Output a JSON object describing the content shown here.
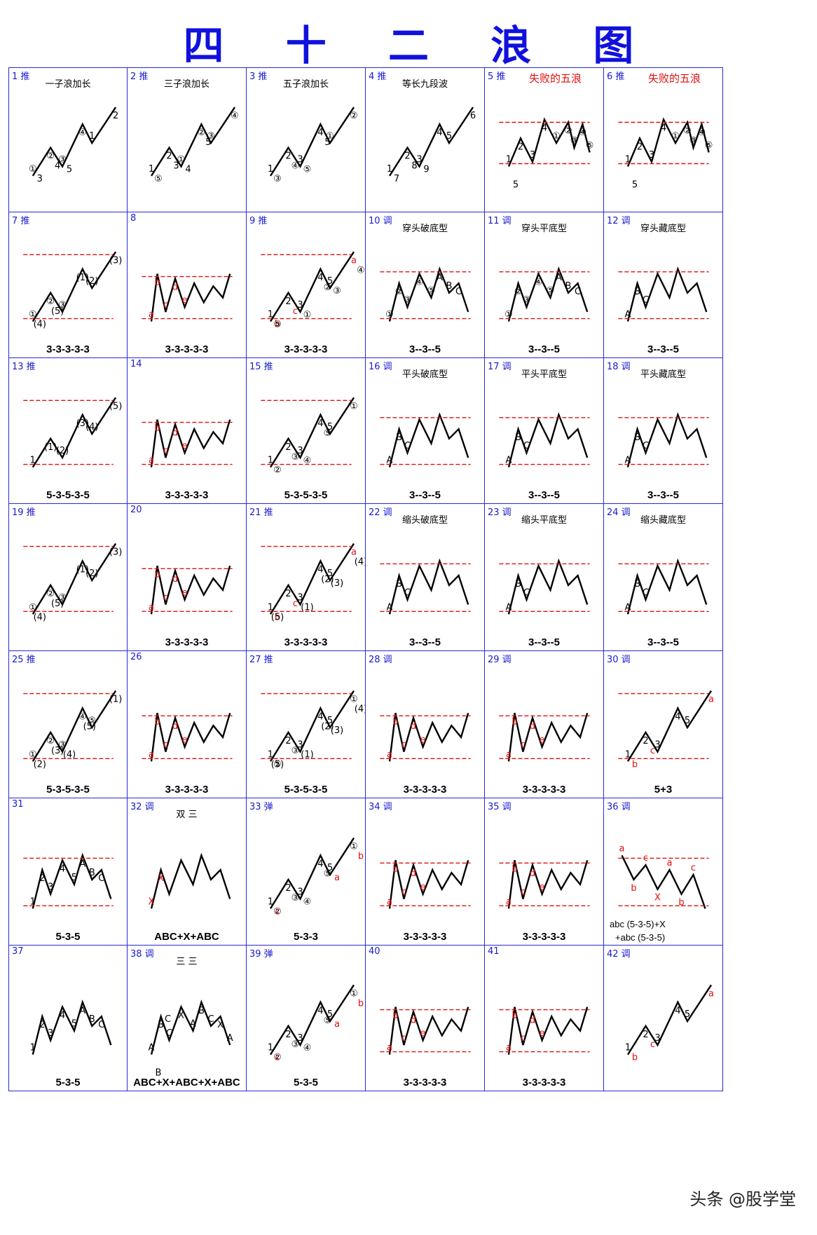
{
  "title": "四 十 二 浪 图",
  "watermark": "头条 @股学堂",
  "panels": [
    {
      "num": "1 推",
      "name": "一子浪加长",
      "formula": "",
      "red": false,
      "labels": [
        "①",
        "②",
        "③",
        "④",
        "1",
        "2",
        "3",
        "4",
        "5"
      ]
    },
    {
      "num": "2 推",
      "name": "三子浪加长",
      "formula": "",
      "red": false,
      "labels": [
        "1",
        "2",
        "①",
        "②",
        "③",
        "④",
        "⑤",
        "3",
        "4",
        "5"
      ]
    },
    {
      "num": "3 推",
      "name": "五子浪加长",
      "formula": "",
      "red": false,
      "labels": [
        "1",
        "2",
        "3",
        "4",
        "①",
        "②",
        "③",
        "④",
        "⑤",
        "5"
      ]
    },
    {
      "num": "4 推",
      "name": "等长九段波",
      "formula": "",
      "red": false,
      "labels": [
        "1",
        "2",
        "3",
        "4",
        "5",
        "6",
        "7",
        "8",
        "9"
      ]
    },
    {
      "num": "5 推",
      "name": "失败的五浪",
      "formula": "",
      "red": true,
      "labels": [
        "1",
        "2",
        "3",
        "4",
        "①",
        "②",
        "③",
        "④",
        "⑤",
        "5"
      ]
    },
    {
      "num": "6 推",
      "name": "失败的五浪",
      "formula": "",
      "red": true,
      "labels": [
        "1",
        "2",
        "3",
        "4",
        "①",
        "②",
        "③",
        "④",
        "⑤",
        "5"
      ]
    },
    {
      "num": "7 推",
      "name": "",
      "formula": "3-3-3-3-3",
      "red": false,
      "labels": [
        "①",
        "②",
        "③",
        "(1)",
        "(2)",
        "(3)",
        "(4)",
        "(5)"
      ]
    },
    {
      "num": "8",
      "name": "",
      "formula": "3-3-3-3-3",
      "red": false,
      "labels": [
        "a",
        "b",
        "c",
        "d",
        "e"
      ]
    },
    {
      "num": "9 推",
      "name": "",
      "formula": "3-3-3-3-3",
      "red": false,
      "labels": [
        "1",
        "2",
        "3",
        "4",
        "5",
        "a",
        "b",
        "c",
        "①",
        "②",
        "③",
        "④",
        "⑤"
      ]
    },
    {
      "num": "10 调",
      "name": "穿头破底型",
      "formula": "3--3--5",
      "red": false,
      "labels": [
        "①",
        "②",
        "③",
        "④",
        "⑤",
        "A",
        "B",
        "C"
      ]
    },
    {
      "num": "11 调",
      "name": "穿头平底型",
      "formula": "3--3--5",
      "red": false,
      "labels": [
        "①",
        "②",
        "③",
        "④",
        "⑤",
        "A",
        "B",
        "C"
      ]
    },
    {
      "num": "12 调",
      "name": "穿头藏底型",
      "formula": "3--3--5",
      "red": false,
      "labels": [
        "A",
        "B",
        "C"
      ]
    },
    {
      "num": "13 推",
      "name": "",
      "formula": "5-3-5-3-5",
      "red": false,
      "labels": [
        "1",
        "(1)",
        "(2)",
        "(3)",
        "(4)",
        "(5)"
      ]
    },
    {
      "num": "14",
      "name": "",
      "formula": "3-3-3-3-3",
      "red": false,
      "labels": [
        "a",
        "b",
        "c",
        "d",
        "e"
      ]
    },
    {
      "num": "15 推",
      "name": "",
      "formula": "5-3-5-3-5",
      "red": false,
      "labels": [
        "1",
        "2",
        "3",
        "4",
        "5",
        "①",
        "②",
        "③",
        "④",
        "⑤"
      ]
    },
    {
      "num": "16 调",
      "name": "平头破底型",
      "formula": "3--3--5",
      "red": false,
      "labels": [
        "A",
        "B",
        "C"
      ]
    },
    {
      "num": "17 调",
      "name": "平头平底型",
      "formula": "3--3--5",
      "red": false,
      "labels": [
        "A",
        "B",
        "C"
      ]
    },
    {
      "num": "18 调",
      "name": "平头藏底型",
      "formula": "3--3--5",
      "red": false,
      "labels": [
        "A",
        "B",
        "C"
      ]
    },
    {
      "num": "19 推",
      "name": "",
      "formula": "",
      "red": false,
      "labels": [
        "①",
        "②",
        "③",
        "(1)",
        "(2)",
        "(3)",
        "(4)",
        "(5)"
      ]
    },
    {
      "num": "20",
      "name": "",
      "formula": "3-3-3-3-3",
      "red": false,
      "labels": [
        "a",
        "b",
        "c",
        "d",
        "e"
      ]
    },
    {
      "num": "21 推",
      "name": "",
      "formula": "3-3-3-3-3",
      "red": false,
      "labels": [
        "1",
        "2",
        "3",
        "4",
        "5",
        "a",
        "b",
        "c",
        "(1)",
        "(2)",
        "(3)",
        "(4)",
        "(5)"
      ]
    },
    {
      "num": "22 调",
      "name": "缩头破底型",
      "formula": "3--3--5",
      "red": false,
      "labels": [
        "A",
        "B",
        "C"
      ]
    },
    {
      "num": "23 调",
      "name": "缩头平底型",
      "formula": "3--3--5",
      "red": false,
      "labels": [
        "A",
        "B",
        "C"
      ]
    },
    {
      "num": "24 调",
      "name": "缩头藏底型",
      "formula": "3--3--5",
      "red": false,
      "labels": [
        "A",
        "B",
        "C"
      ]
    },
    {
      "num": "25 推",
      "name": "",
      "formula": "5-3-5-3-5",
      "red": false,
      "labels": [
        "①",
        "②",
        "③",
        "④",
        "⑤",
        "(1)",
        "(2)",
        "(3)",
        "(4)",
        "(5)"
      ]
    },
    {
      "num": "26",
      "name": "",
      "formula": "3-3-3-3-3",
      "red": false,
      "labels": [
        "a",
        "b",
        "c",
        "d",
        "e"
      ]
    },
    {
      "num": "27 推",
      "name": "",
      "formula": "5-3-5-3-5",
      "red": false,
      "labels": [
        "1",
        "2",
        "3",
        "4",
        "5",
        "①",
        "②",
        "③",
        "(1)",
        "(2)",
        "(3)",
        "(4)",
        "(5)"
      ]
    },
    {
      "num": "28 调",
      "name": "",
      "formula": "3-3-3-3-3",
      "red": false,
      "labels": [
        "a",
        "b",
        "c",
        "d",
        "e"
      ]
    },
    {
      "num": "29 调",
      "name": "",
      "formula": "3-3-3-3-3",
      "red": false,
      "labels": [
        "a",
        "b",
        "c",
        "d",
        "e"
      ]
    },
    {
      "num": "30 调",
      "name": "",
      "formula": "5+3",
      "red": false,
      "labels": [
        "1",
        "2",
        "3",
        "4",
        "5",
        "a",
        "b",
        "c"
      ]
    },
    {
      "num": "31",
      "name": "",
      "formula": "5-3-5",
      "red": false,
      "labels": [
        "1",
        "2",
        "3",
        "4",
        "5",
        "A",
        "B",
        "C"
      ]
    },
    {
      "num": "32 调",
      "name": "双 三",
      "formula": "ABC+X+ABC",
      "red": false,
      "labels": [
        "X",
        "X"
      ]
    },
    {
      "num": "33 弹",
      "name": "",
      "formula": "5-3-3",
      "red": false,
      "labels": [
        "1",
        "2",
        "3",
        "4",
        "5",
        "①",
        "②",
        "③",
        "④",
        "⑤",
        "a",
        "b",
        "c"
      ]
    },
    {
      "num": "34 调",
      "name": "",
      "formula": "3-3-3-3-3",
      "red": false,
      "labels": [
        "a",
        "b",
        "c",
        "d",
        "e"
      ]
    },
    {
      "num": "35 调",
      "name": "",
      "formula": "3-3-3-3-3",
      "red": false,
      "labels": [
        "a",
        "b",
        "c",
        "d",
        "e"
      ]
    },
    {
      "num": "36 调",
      "name": "",
      "formula": "abc (5-3-5)+X",
      "formula2": "+abc (5-3-5)",
      "red": false,
      "labels": [
        "a",
        "b",
        "c",
        "X",
        "a",
        "b",
        "c"
      ]
    },
    {
      "num": "37",
      "name": "",
      "formula": "5-3-5",
      "red": false,
      "labels": [
        "1",
        "2",
        "3",
        "4",
        "5",
        "A",
        "B",
        "C"
      ]
    },
    {
      "num": "38 调",
      "name": "三 三",
      "formula": "ABC+X+ABC+X+ABC",
      "red": false,
      "labels": [
        "A",
        "B",
        "C",
        "X",
        "A",
        "B",
        "C",
        "X",
        "A",
        "B",
        "C"
      ]
    },
    {
      "num": "39 弹",
      "name": "",
      "formula": "5-3-5",
      "red": false,
      "labels": [
        "1",
        "2",
        "3",
        "4",
        "5",
        "①",
        "②",
        "③",
        "④",
        "⑤",
        "a",
        "b",
        "c"
      ]
    },
    {
      "num": "40",
      "name": "",
      "formula": "3-3-3-3-3",
      "red": false,
      "labels": [
        "a",
        "b",
        "c",
        "d",
        "e"
      ]
    },
    {
      "num": "41",
      "name": "",
      "formula": "3-3-3-3-3",
      "red": false,
      "labels": [
        "a",
        "b",
        "c",
        "d",
        "e"
      ]
    },
    {
      "num": "42 调",
      "name": "",
      "formula": "",
      "red": false,
      "labels": [
        "1",
        "2",
        "3",
        "4",
        "5",
        "a",
        "b",
        "c"
      ]
    }
  ]
}
